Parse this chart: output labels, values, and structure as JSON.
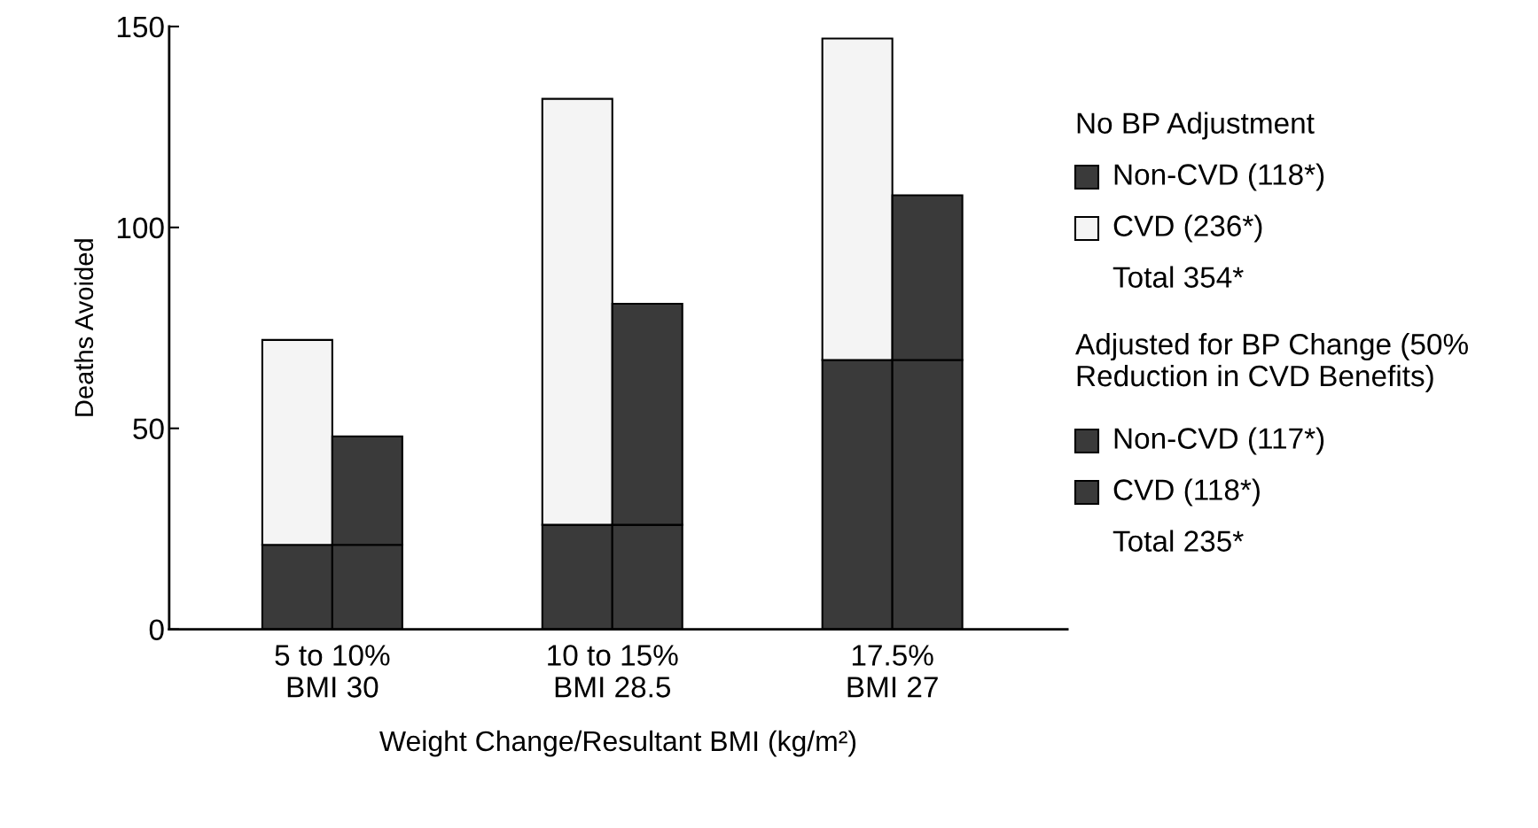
{
  "chart_data": {
    "type": "bar",
    "stacked": true,
    "ylabel": "Deaths Avoided",
    "xlabel": "Weight Change/Resultant BMI (kg/m²)",
    "categories": [
      "5 to 10%\nBMI 30",
      null,
      null,
      null,
      "10 to 15%\nBMI 28.5",
      null,
      null,
      null,
      "17.5%\nBMI 27",
      null
    ],
    "series": [
      {
        "name": "Non-CVD (118*)",
        "color": "#3a3a3a",
        "values": [
          21,
          null,
          null,
          null,
          26,
          null,
          null,
          null,
          67,
          null
        ]
      },
      {
        "name": "CVD (236*)",
        "color": "#f4f4f4",
        "values": [
          51,
          null,
          null,
          null,
          106,
          null,
          null,
          null,
          80,
          null
        ]
      },
      {
        "name": "Non-CVD (117*)",
        "color": "#3a3a3a",
        "values": [
          null,
          21,
          null,
          null,
          null,
          26,
          null,
          null,
          null,
          67
        ]
      },
      {
        "name": "CVD (118*)",
        "color": "#3a3a3a",
        "values": [
          null,
          27,
          null,
          null,
          null,
          55,
          null,
          null,
          null,
          41
        ]
      }
    ],
    "annotations": [
      "No BP Adjustment",
      "Total 354*",
      "Adjusted for BP Change (50% Reduction in CVD Benefits)",
      "Total 235*"
    ],
    "ylim": [
      0,
      150
    ],
    "yticks": [
      0,
      50,
      100,
      150
    ],
    "legend": "right"
  }
}
